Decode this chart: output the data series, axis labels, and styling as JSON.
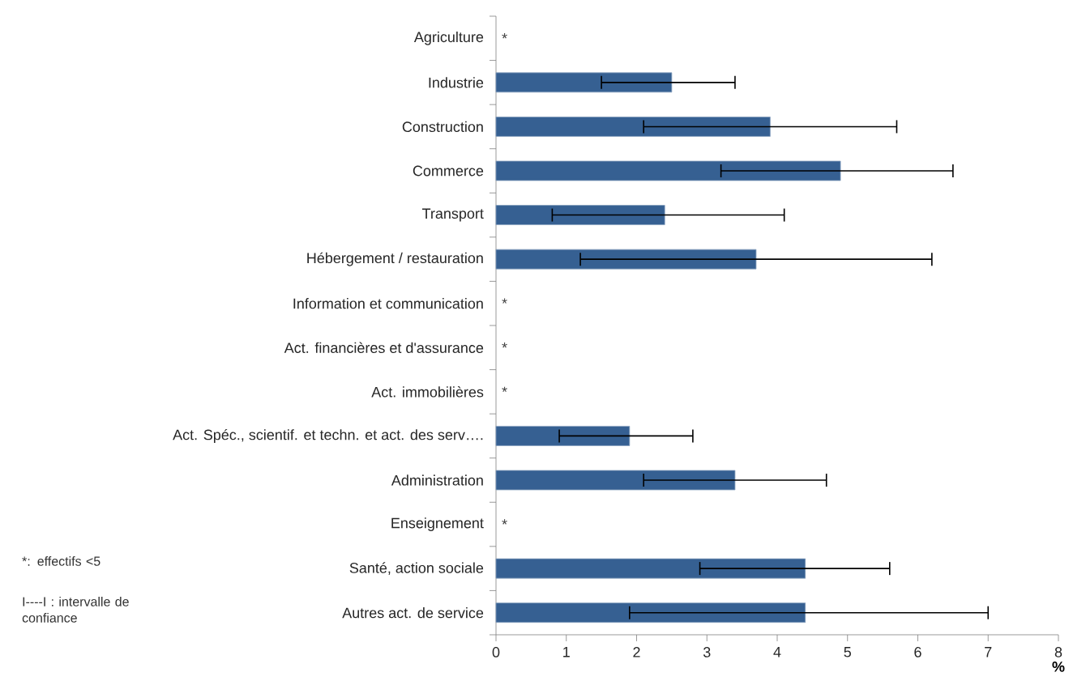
{
  "chart_data": {
    "type": "bar",
    "orientation": "horizontal",
    "xlabel": "%",
    "categories": [
      "Agriculture",
      "Industrie",
      "Construction",
      "Commerce",
      "Transport",
      "Hébergement / restauration",
      "Information et communication",
      "Act. financières et d'assurance",
      "Act. immobilières",
      "Act. Spéc., scientif. et techn. et act. des serv….",
      "Administration",
      "Enseignement",
      "Santé, action sociale",
      "Autres act. de service"
    ],
    "values": [
      null,
      2.5,
      3.9,
      4.9,
      2.4,
      3.7,
      null,
      null,
      null,
      1.9,
      3.4,
      null,
      4.4,
      4.4
    ],
    "errors": [
      null,
      [
        1.5,
        3.4
      ],
      [
        2.1,
        5.7
      ],
      [
        3.2,
        6.5
      ],
      [
        0.8,
        4.1
      ],
      [
        1.2,
        6.2
      ],
      null,
      null,
      null,
      [
        0.9,
        2.8
      ],
      [
        2.1,
        4.7
      ],
      null,
      [
        2.9,
        5.6
      ],
      [
        1.9,
        7.0
      ]
    ],
    "color": "#366092",
    "xlim": [
      0,
      8
    ],
    "xticks": [
      0,
      1,
      2,
      3,
      4,
      5,
      6,
      7,
      8
    ],
    "grid": false,
    "annotations": [
      "*",
      "*",
      "*",
      "*",
      "*",
      "*: effectifs <5",
      "I----I : intervalle de confiance"
    ]
  }
}
